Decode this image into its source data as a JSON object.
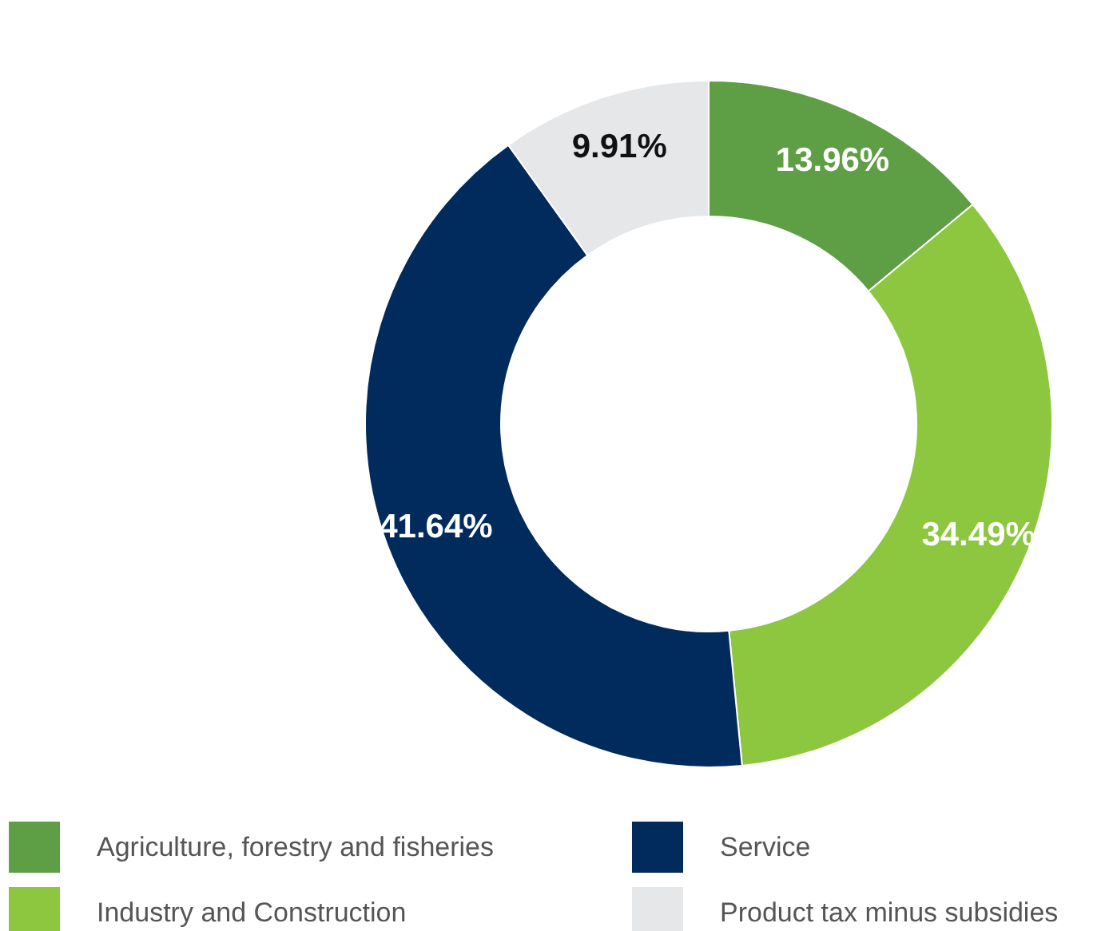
{
  "chart_data": {
    "type": "donut",
    "categories": [
      "Agriculture, forestry and fisheries",
      "Industry and Construction",
      "Service",
      "Product tax minus subsidies"
    ],
    "values": [
      13.96,
      34.49,
      41.64,
      9.91
    ],
    "colors": [
      "#5e9e44",
      "#8dc63f",
      "#002b5c",
      "#e6e7e9"
    ],
    "value_labels": [
      "13.96%",
      "34.49%",
      "41.64%",
      "9.91%"
    ],
    "legend": "bottom"
  }
}
